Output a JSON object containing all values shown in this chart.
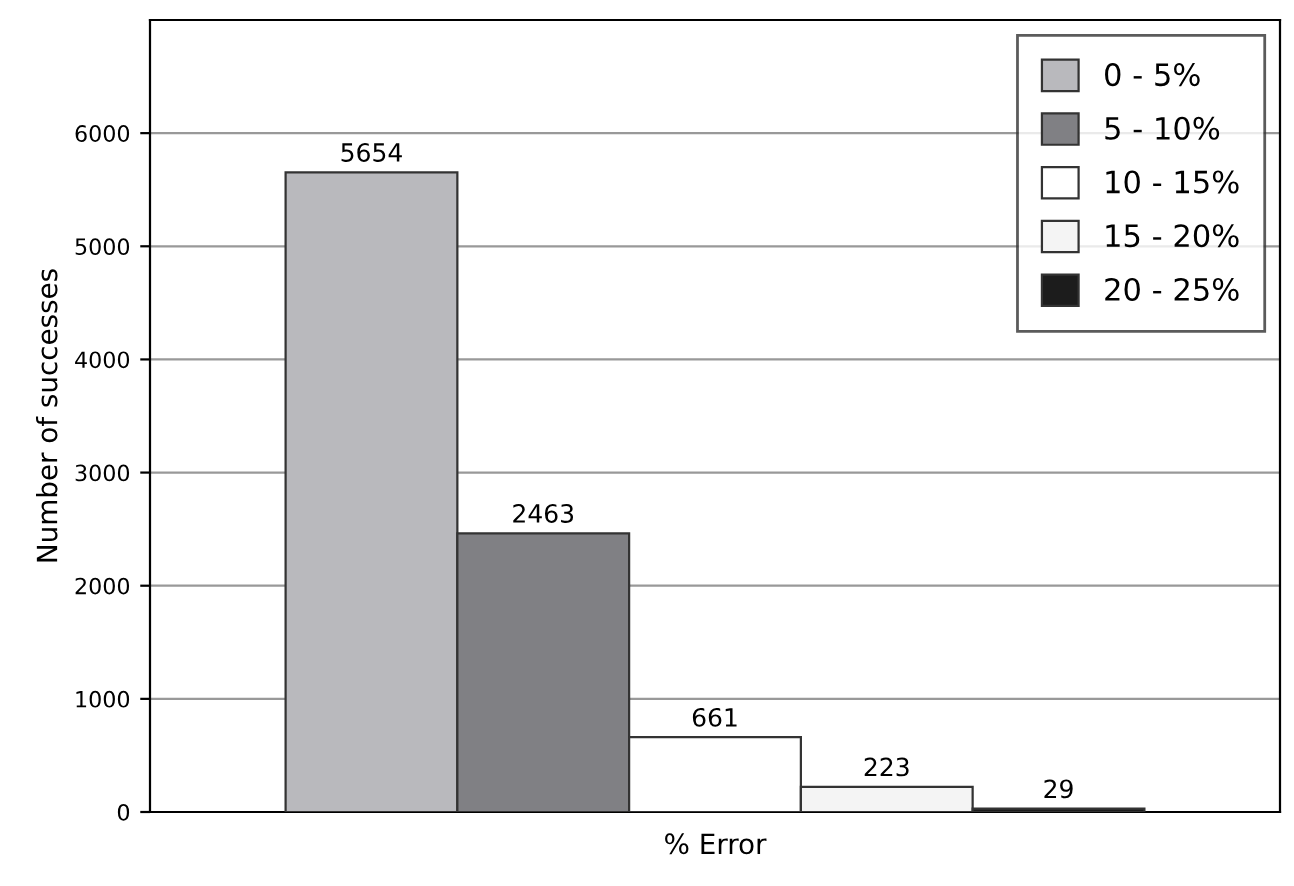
{
  "chart_data": {
    "type": "bar",
    "xlabel": "% Error",
    "ylabel": "Number of successes",
    "categories": [
      null
    ],
    "series": [
      {
        "name": "0 - 5%",
        "color": "#b9b9bd",
        "values": [
          5654
        ]
      },
      {
        "name": "5 - 10%",
        "color": "#808084",
        "values": [
          2463
        ]
      },
      {
        "name": "10 - 15%",
        "color": "#ffffff",
        "values": [
          661
        ]
      },
      {
        "name": "15 - 20%",
        "color": "#f4f4f4",
        "values": [
          223
        ]
      },
      {
        "name": "20 - 25%",
        "color": "#1c1c1c",
        "values": [
          29
        ]
      }
    ],
    "ylim": [
      0,
      7000
    ],
    "yticks": [
      0,
      1000,
      2000,
      3000,
      4000,
      5000,
      6000
    ],
    "grid": "y",
    "legend": "top right",
    "data_labels": true
  }
}
